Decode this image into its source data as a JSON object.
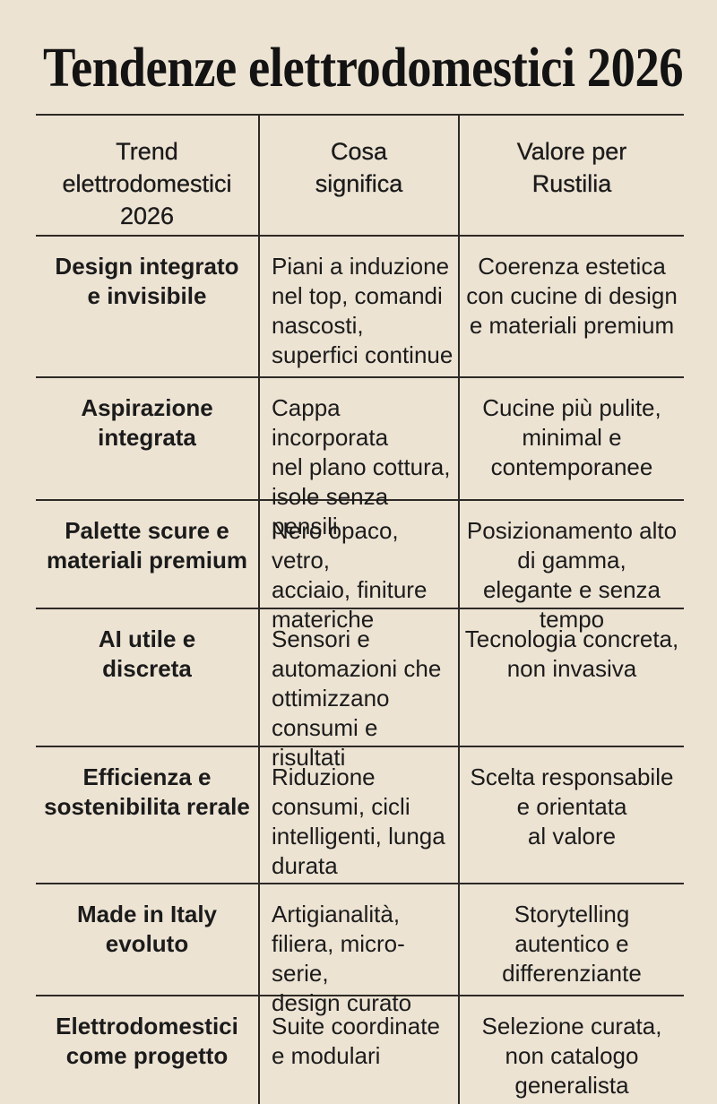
{
  "title": "Tendenze elettrodomestici 2026",
  "theme": {
    "background": "#EDE3D3",
    "text_color": "#1B1B1B",
    "line_color": "#2D2A26"
  },
  "table": {
    "headers": {
      "trend": "Trend\nelettrodomestici\n2026",
      "meaning": "Cosa\nsignifica",
      "value": "Valore per\nRustilia"
    },
    "rows": [
      {
        "trend": "Design integrato\ne invisibile",
        "meaning": "Piani a induzione\nnel top, comandi\nnascosti,\nsuperfici continue",
        "value": "Coerenza estetica\ncon cucine di design\ne materiali premium"
      },
      {
        "trend": "Aspirazione\nintegrata",
        "meaning": "Cappa incorporata\nnel plano cottura,\nisole senza pensili",
        "value": "Cucine più pulite,\nminimal e\ncontemporanee"
      },
      {
        "trend": "Palette scure e\nmateriali premium",
        "meaning": "Nero opaco, vetro,\nacciaio, finiture\nmateriche",
        "value": "Posizionamento alto\ndi gamma,\nelegante e senza tempo"
      },
      {
        "trend": "AI utile e\ndiscreta",
        "meaning": "Sensori e\nautomazioni che\nottimizzano\nconsumi e risultati",
        "value": "Tecnologia concreta,\nnon invasiva"
      },
      {
        "trend": "Efficienza e\nsostenibilita rerale",
        "meaning": "Riduzione\nconsumi, cicli\nintelligenti, lunga\ndurata",
        "value": "Scelta responsabile\ne orientata\nal valore"
      },
      {
        "trend": "Made in Italy\nevoluto",
        "meaning": "Artigianalità,\nfiliera, micro-serie,\ndesign curato",
        "value": "Storytelling\nautentico e\ndifferenziante"
      },
      {
        "trend": "Elettrodomestici\ncome progetto",
        "meaning": "Suite coordinate\ne modulari",
        "value": "Selezione curata,\nnon catalogo generalista"
      }
    ]
  }
}
